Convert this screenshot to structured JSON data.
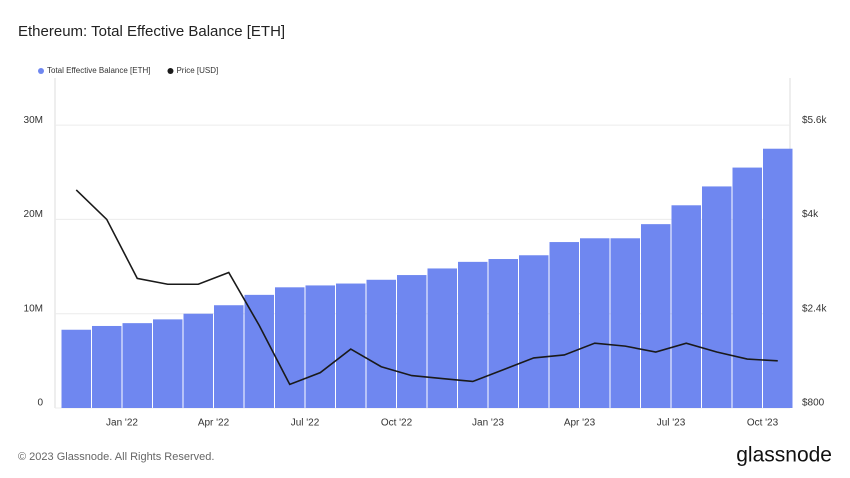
{
  "chart_data": {
    "type": "bar",
    "title": "Ethereum: Total Effective Balance [ETH]",
    "x": [
      "2021-11",
      "2021-12",
      "2022-01",
      "2022-02",
      "2022-03",
      "2022-04",
      "2022-05",
      "2022-06",
      "2022-07",
      "2022-08",
      "2022-09",
      "2022-10",
      "2022-11",
      "2022-12",
      "2023-01",
      "2023-02",
      "2023-03",
      "2023-04",
      "2023-05",
      "2023-06",
      "2023-07",
      "2023-08",
      "2023-09",
      "2023-10"
    ],
    "series": [
      {
        "name": "Total Effective Balance [ETH]",
        "type": "bar",
        "axis": "y",
        "color": "#6f87f0",
        "values": [
          8300000,
          8700000,
          9000000,
          9400000,
          10000000,
          10900000,
          12000000,
          12800000,
          13000000,
          13200000,
          13600000,
          14100000,
          14800000,
          15500000,
          15800000,
          16200000,
          17600000,
          18000000,
          18000000,
          19500000,
          21500000,
          23500000,
          25500000,
          27500000
        ]
      },
      {
        "name": "Price [USD]",
        "type": "line",
        "axis": "y2",
        "color": "#1a1a1a",
        "values": [
          4500,
          4000,
          3000,
          2900,
          2900,
          3100,
          2200,
          1200,
          1400,
          1800,
          1500,
          1350,
          1300,
          1250,
          1450,
          1650,
          1700,
          1900,
          1850,
          1750,
          1900,
          1750,
          1630,
          1600
        ]
      }
    ],
    "ylim": [
      0,
      35000000
    ],
    "yticks": [
      {
        "value": 0,
        "label": "0"
      },
      {
        "value": 10000000,
        "label": "10M"
      },
      {
        "value": 20000000,
        "label": "20M"
      },
      {
        "value": 30000000,
        "label": "30M"
      }
    ],
    "y2lim": [
      800,
      6400
    ],
    "y2ticks": [
      {
        "value": 800,
        "label": "$800"
      },
      {
        "value": 2400,
        "label": "$2.4k"
      },
      {
        "value": 4000,
        "label": "$4k"
      },
      {
        "value": 5600,
        "label": "$5.6k"
      }
    ],
    "xticks": [
      {
        "value": "2022-01",
        "label": "Jan '22"
      },
      {
        "value": "2022-04",
        "label": "Apr '22"
      },
      {
        "value": "2022-07",
        "label": "Jul '22"
      },
      {
        "value": "2022-10",
        "label": "Oct '22"
      },
      {
        "value": "2023-01",
        "label": "Jan '23"
      },
      {
        "value": "2023-04",
        "label": "Apr '23"
      },
      {
        "value": "2023-07",
        "label": "Jul '23"
      },
      {
        "value": "2023-10",
        "label": "Oct '23"
      }
    ],
    "grid": true,
    "legend": "top-left"
  },
  "footer": "© 2023 Glassnode. All Rights Reserved.",
  "brand": "glassnode"
}
